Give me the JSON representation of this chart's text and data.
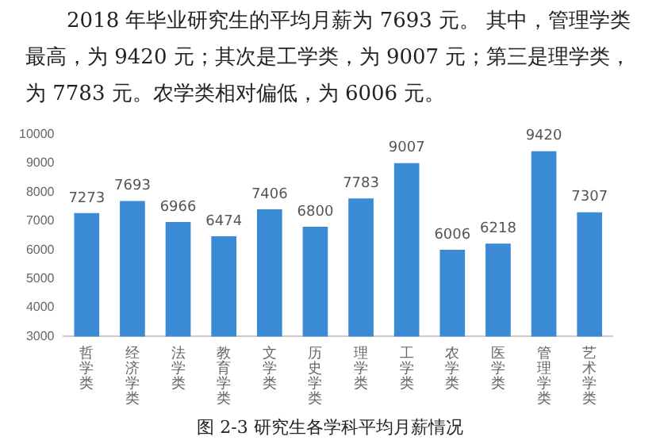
{
  "chart_data": {
    "type": "bar",
    "annotations": [
      "2018 年毕业研究生的平均月薪为 7693 元。 其中，管理学类最高，为 9420 元；其次是工学类，为 9007 元；第三是理学类，为 7783 元。农学类相对偏低，为 6006 元。",
      "图 2-3  研究生各学科平均月薪情况"
    ],
    "categories": [
      "哲学类",
      "经济学类",
      "法学类",
      "教育学类",
      "文学类",
      "历史学类",
      "理学类",
      "工学类",
      "农学类",
      "医学类",
      "管理学类",
      "艺术学类"
    ],
    "values": [
      7273,
      7693,
      6966,
      6474,
      7406,
      6800,
      7783,
      9007,
      6006,
      6218,
      9420,
      7307
    ],
    "color": "#3b8ad6",
    "ylim": [
      3000,
      10000
    ],
    "yticks": [
      3000,
      4000,
      5000,
      6000,
      7000,
      8000,
      9000,
      10000
    ],
    "grid": false,
    "legend": false,
    "data_labels": true
  }
}
